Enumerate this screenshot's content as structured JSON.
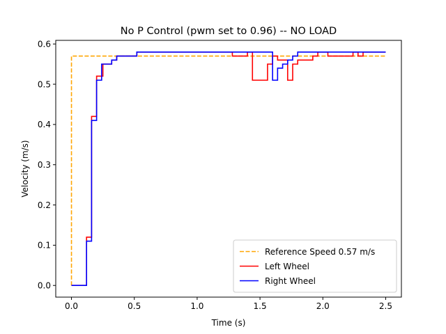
{
  "chart_data": {
    "type": "line",
    "title": "No P Control (pwm set to 0.96) -- NO LOAD",
    "xlabel": "Time (s)",
    "ylabel": "Velocity (m/s)",
    "xlim": [
      -0.125,
      2.625
    ],
    "ylim": [
      -0.029,
      0.609
    ],
    "xticks": [
      0.0,
      0.5,
      1.0,
      1.5,
      2.0,
      2.5
    ],
    "xtick_labels": [
      "0.0",
      "0.5",
      "1.0",
      "1.5",
      "2.0",
      "2.5"
    ],
    "yticks": [
      0.0,
      0.1,
      0.2,
      0.3,
      0.4,
      0.5,
      0.6
    ],
    "ytick_labels": [
      "0.0",
      "0.1",
      "0.2",
      "0.3",
      "0.4",
      "0.5",
      "0.6"
    ],
    "grid": false,
    "legend_position": "lower-right",
    "series": [
      {
        "name": "Reference Speed 0.57 m/s",
        "style": "dashed",
        "color": "#ffa500",
        "x": [
          0.0,
          0.0,
          2.5
        ],
        "y": [
          0.0,
          0.57,
          0.57
        ]
      },
      {
        "name": "Left Wheel",
        "style": "step",
        "color": "#ff0000",
        "x": [
          0.0,
          0.12,
          0.16,
          0.2,
          0.25,
          0.32,
          0.36,
          0.52,
          1.24,
          1.28,
          1.4,
          1.44,
          1.52,
          1.56,
          1.6,
          1.64,
          1.72,
          1.76,
          1.8,
          1.92,
          1.96,
          2.04,
          2.24,
          2.28,
          2.32,
          2.5
        ],
        "y": [
          0.0,
          0.12,
          0.42,
          0.52,
          0.55,
          0.56,
          0.57,
          0.58,
          0.58,
          0.57,
          0.58,
          0.51,
          0.51,
          0.55,
          0.57,
          0.56,
          0.51,
          0.55,
          0.56,
          0.57,
          0.58,
          0.57,
          0.58,
          0.57,
          0.58,
          0.58
        ]
      },
      {
        "name": "Right Wheel",
        "style": "step",
        "color": "#0000ff",
        "x": [
          0.0,
          0.12,
          0.16,
          0.2,
          0.24,
          0.32,
          0.36,
          0.52,
          1.6,
          1.64,
          1.68,
          1.72,
          1.76,
          1.8,
          2.5
        ],
        "y": [
          0.0,
          0.11,
          0.41,
          0.51,
          0.55,
          0.56,
          0.57,
          0.58,
          0.51,
          0.54,
          0.55,
          0.56,
          0.57,
          0.58,
          0.58
        ]
      }
    ]
  }
}
